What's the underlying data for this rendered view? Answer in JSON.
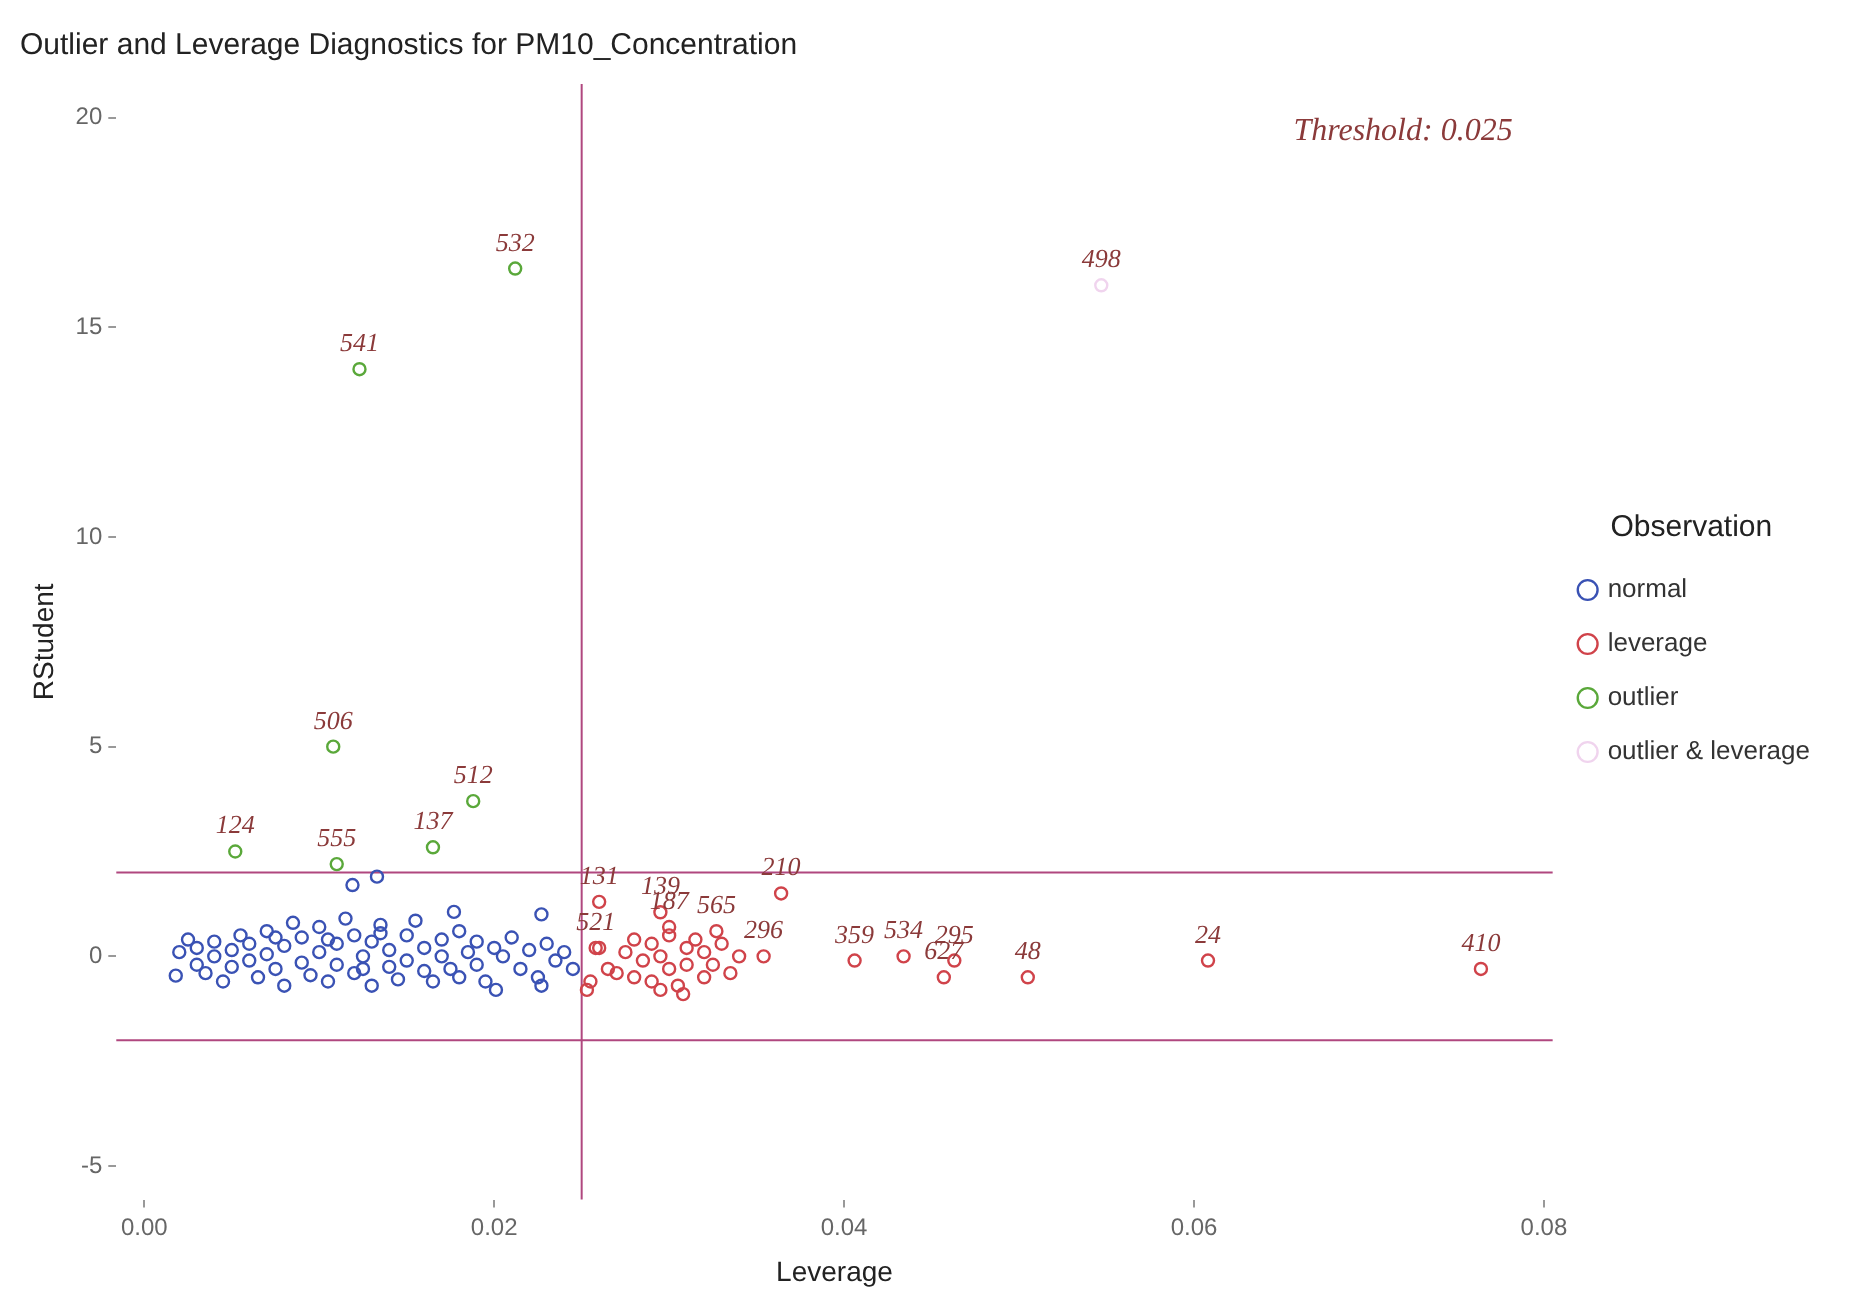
{
  "chart_data": {
    "type": "scatter",
    "title": "Outlier and Leverage Diagnostics for PM10_Concentration",
    "xlabel": "Leverage",
    "ylabel": "RStudent",
    "legend_title": "Observation",
    "legend": "right",
    "marker": "circle",
    "grid": false,
    "xlim": [
      -0.0016,
      0.0805
    ],
    "ylim": [
      -5.8,
      20.8
    ],
    "xticks": [
      {
        "value": 0,
        "label": "0.00"
      },
      {
        "value": 0.02,
        "label": "0.02"
      },
      {
        "value": 0.04,
        "label": "0.04"
      },
      {
        "value": 0.06,
        "label": "0.06"
      },
      {
        "value": 0.08,
        "label": "0.08"
      }
    ],
    "yticks": [
      -5,
      0,
      5,
      10,
      15,
      20
    ],
    "ref_lines": [
      {
        "axis": "x",
        "value": 0.025,
        "color": "#b0477f"
      },
      {
        "axis": "y",
        "value": 2,
        "color": "#b0477f"
      },
      {
        "axis": "y",
        "value": -2,
        "color": "#b0477f"
      }
    ],
    "series": [
      {
        "name": "normal",
        "color": "#3a52b4",
        "x": [
          0.0018,
          0.002,
          0.003,
          0.003,
          0.0035,
          0.004,
          0.004,
          0.0045,
          0.005,
          0.005,
          0.0055,
          0.006,
          0.006,
          0.0065,
          0.007,
          0.007,
          0.0075,
          0.008,
          0.008,
          0.0085,
          0.009,
          0.009,
          0.0095,
          0.01,
          0.01,
          0.0105,
          0.011,
          0.011,
          0.0115,
          0.012,
          0.012,
          0.0125,
          0.013,
          0.013,
          0.0135,
          0.014,
          0.014,
          0.0145,
          0.015,
          0.015,
          0.0155,
          0.016,
          0.016,
          0.0165,
          0.017,
          0.017,
          0.0175,
          0.018,
          0.018,
          0.0185,
          0.019,
          0.019,
          0.0195,
          0.02,
          0.0201,
          0.0205,
          0.021,
          0.0215,
          0.022,
          0.0225,
          0.0227,
          0.0227,
          0.023,
          0.0235,
          0.024,
          0.0245,
          0.0119,
          0.0133,
          0.0177,
          0.0025,
          0.0075,
          0.0105,
          0.0125,
          0.0135
        ],
        "values": [
          -0.46,
          0.1,
          -0.2,
          0.2,
          -0.4,
          0,
          0.35,
          -0.6,
          0.15,
          -0.25,
          0.5,
          -0.1,
          0.3,
          -0.5,
          0.05,
          0.6,
          -0.3,
          0.25,
          -0.7,
          0.8,
          -0.15,
          0.45,
          -0.45,
          0.1,
          0.7,
          -0.6,
          0.3,
          -0.2,
          0.9,
          -0.4,
          0.5,
          0,
          -0.7,
          0.35,
          0.75,
          -0.25,
          0.15,
          -0.55,
          0.5,
          -0.1,
          0.85,
          -0.35,
          0.2,
          -0.6,
          0.4,
          0,
          -0.3,
          0.6,
          -0.5,
          0.1,
          -0.2,
          0.35,
          -0.6,
          0.2,
          -0.8,
          0,
          0.45,
          -0.3,
          0.15,
          -0.5,
          1.0,
          -0.7,
          0.3,
          -0.1,
          0.1,
          -0.3,
          1.7,
          1.9,
          1.06,
          0.4,
          0.45,
          0.4,
          -0.3,
          0.55
        ]
      },
      {
        "name": "leverage",
        "color": "#d0434a",
        "x": [
          0.0253,
          0.0255,
          0.026,
          0.026,
          0.0258,
          0.027,
          0.0275,
          0.028,
          0.028,
          0.0285,
          0.029,
          0.029,
          0.0295,
          0.0295,
          0.03,
          0.03,
          0.03,
          0.0305,
          0.031,
          0.031,
          0.0315,
          0.032,
          0.032,
          0.0325,
          0.0327,
          0.033,
          0.0335,
          0.034,
          0.0265,
          0.0295,
          0.0308,
          0.0354,
          0.0364,
          0.0406,
          0.0434,
          0.0457,
          0.0463,
          0.0505,
          0.0608,
          0.0764
        ],
        "values": [
          -0.8,
          -0.6,
          0.2,
          1.3,
          0.2,
          -0.4,
          0.1,
          -0.5,
          0.4,
          -0.1,
          0.3,
          -0.6,
          0,
          1.05,
          -0.3,
          0.5,
          0.7,
          -0.7,
          0.2,
          -0.2,
          0.4,
          -0.5,
          0.1,
          -0.2,
          0.6,
          0.3,
          -0.4,
          0,
          -0.3,
          -0.8,
          -0.9,
          0,
          1.5,
          -0.1,
          0,
          -0.5,
          -0.1,
          -0.5,
          -0.1,
          -0.3
        ]
      },
      {
        "name": "outlier",
        "color": "#5aa83a",
        "x": [
          0.0212,
          0.0123,
          0.0108,
          0.0188,
          0.0052,
          0.011,
          0.0165
        ],
        "values": [
          16.4,
          14.0,
          5.0,
          3.7,
          2.5,
          2.2,
          2.6
        ]
      },
      {
        "name": "outlier & leverage",
        "color": "#f0d4ee",
        "x": [
          0.0547
        ],
        "values": [
          16.0
        ]
      }
    ],
    "annotations": [
      "Threshold: 0.025",
      {
        "text": "532",
        "x": 0.0212,
        "y": 16.4
      },
      {
        "text": "541",
        "x": 0.0123,
        "y": 14.0
      },
      {
        "text": "506",
        "x": 0.0108,
        "y": 5.0
      },
      {
        "text": "512",
        "x": 0.0188,
        "y": 3.7
      },
      {
        "text": "124",
        "x": 0.0052,
        "y": 2.5
      },
      {
        "text": "555",
        "x": 0.011,
        "y": 2.2
      },
      {
        "text": "137",
        "x": 0.0165,
        "y": 2.6
      },
      {
        "text": "498",
        "x": 0.0547,
        "y": 16.0
      },
      {
        "text": "131",
        "x": 0.026,
        "y": 1.3
      },
      {
        "text": "139",
        "x": 0.0295,
        "y": 1.05
      },
      {
        "text": "187",
        "x": 0.03,
        "y": 0.7
      },
      {
        "text": "565",
        "x": 0.0327,
        "y": 0.6
      },
      {
        "text": "521",
        "x": 0.0258,
        "y": 0.2
      },
      {
        "text": "210",
        "x": 0.0364,
        "y": 1.5
      },
      {
        "text": "296",
        "x": 0.0354,
        "y": 0
      },
      {
        "text": "359",
        "x": 0.0406,
        "y": -0.1
      },
      {
        "text": "534",
        "x": 0.0434,
        "y": 0
      },
      {
        "text": "627",
        "x": 0.0457,
        "y": -0.5
      },
      {
        "text": "295",
        "x": 0.0463,
        "y": -0.1
      },
      {
        "text": "48",
        "x": 0.0505,
        "y": -0.5
      },
      {
        "text": "24",
        "x": 0.0608,
        "y": -0.1
      },
      {
        "text": "410",
        "x": 0.0764,
        "y": -0.3
      }
    ]
  }
}
